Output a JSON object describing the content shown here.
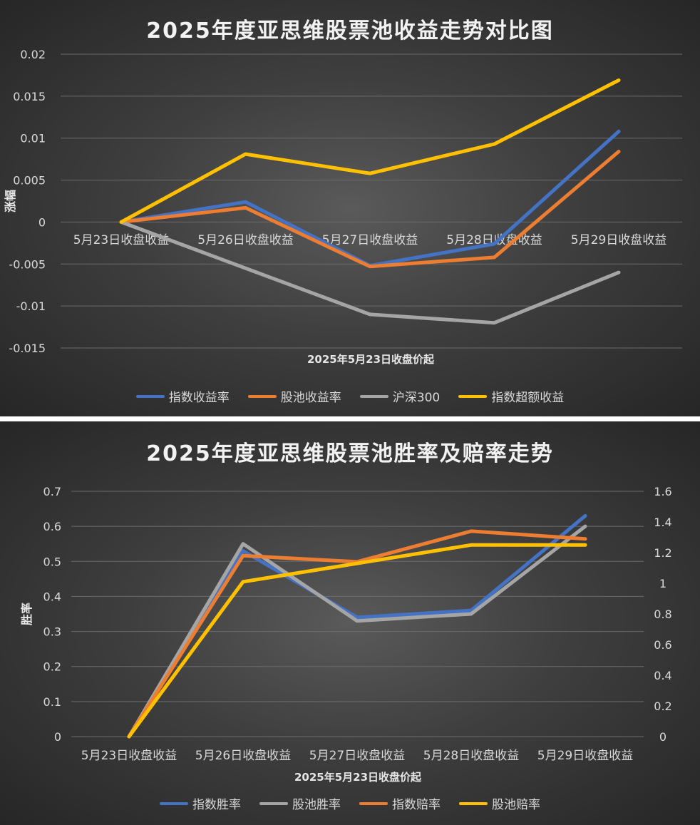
{
  "chart_data": [
    {
      "type": "line",
      "title": "2025年度亚思维股票池收益走势对比图",
      "xlabel": "2025年5月23日收盘价起",
      "ylabel": "涨幅",
      "categories": [
        "5月23日收盘收益",
        "5月26日收盘收益",
        "5月27日收盘收益",
        "5月28日收盘收益",
        "5月29日收盘收益"
      ],
      "ylim": [
        -0.015,
        0.02
      ],
      "yticks": [
        "0.02",
        "0.015",
        "0.01",
        "0.005",
        "0",
        "-0.005",
        "-0.01",
        "-0.015"
      ],
      "grid": true,
      "legend_position": "bottom",
      "series": [
        {
          "name": "指数收益率",
          "color": "#4472c4",
          "values": [
            0,
            0.0024,
            -0.0052,
            -0.0026,
            0.0108
          ]
        },
        {
          "name": "股池收益率",
          "color": "#ed7d31",
          "values": [
            0,
            0.0017,
            -0.0053,
            -0.0042,
            0.0084
          ]
        },
        {
          "name": "沪深300",
          "color": "#a5a5a5",
          "values": [
            0,
            -0.0055,
            -0.011,
            -0.012,
            -0.006
          ]
        },
        {
          "name": "指数超额收益",
          "color": "#ffc000",
          "values": [
            0,
            0.0081,
            0.0058,
            0.0093,
            0.0169
          ]
        }
      ]
    },
    {
      "type": "line",
      "title": "2025年度亚思维股票池胜率及赔率走势",
      "xlabel": "2025年5月23日收盘价起",
      "ylabel": "胜率",
      "categories": [
        "5月23日收盘收益",
        "5月26日收盘收益",
        "5月27日收盘收益",
        "5月28日收盘收益",
        "5月29日收盘收益"
      ],
      "ylim": [
        0,
        0.7
      ],
      "yticks": [
        "0.7",
        "0.6",
        "0.5",
        "0.4",
        "0.3",
        "0.2",
        "0.1",
        "0"
      ],
      "y2lim": [
        0,
        1.6
      ],
      "y2ticks": [
        "1.6",
        "1.4",
        "1.2",
        "1",
        "0.8",
        "0.6",
        "0.4",
        "0.2",
        "0"
      ],
      "grid": true,
      "legend_position": "bottom",
      "series": [
        {
          "name": "指数胜率",
          "color": "#4472c4",
          "axis": "left",
          "values": [
            0,
            0.53,
            0.34,
            0.36,
            0.63
          ]
        },
        {
          "name": "股池胜率",
          "color": "#a5a5a5",
          "axis": "left",
          "values": [
            0,
            0.55,
            0.33,
            0.35,
            0.6
          ]
        },
        {
          "name": "指数赔率",
          "color": "#ed7d31",
          "axis": "right",
          "values": [
            0,
            1.18,
            1.14,
            1.34,
            1.29
          ]
        },
        {
          "name": "股池赔率",
          "color": "#ffc000",
          "axis": "right",
          "values": [
            0,
            1.01,
            1.13,
            1.25,
            1.25
          ]
        }
      ]
    }
  ]
}
